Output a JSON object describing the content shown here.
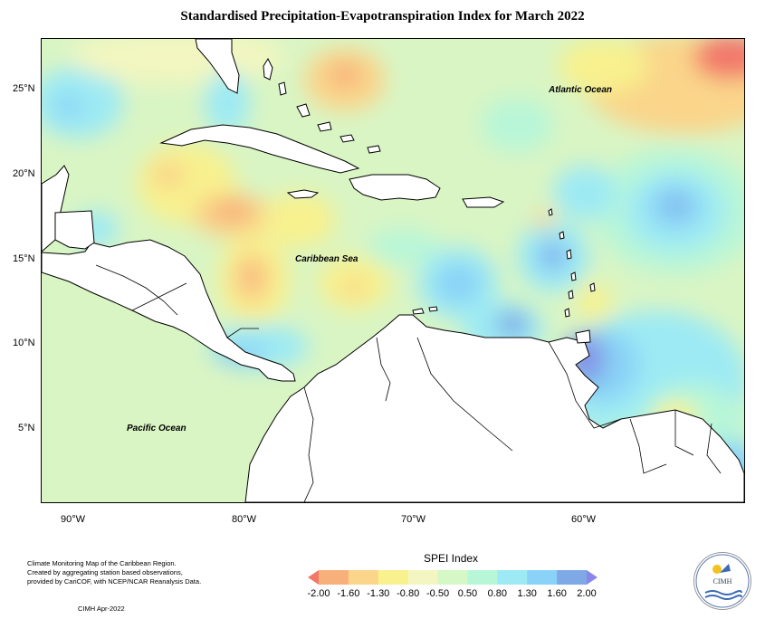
{
  "map": {
    "title": "Standardised Precipitation-Evapotranspiration Index for March 2022",
    "lat_labels": [
      "25°N",
      "20°N",
      "15°N",
      "10°N",
      "5°N"
    ],
    "lon_labels": [
      "90°W",
      "80°W",
      "70°W",
      "60°W"
    ],
    "places": {
      "atlantic": "Atlantic Ocean",
      "caribbean": "Caribbean Sea",
      "pacific": "Pacific Ocean"
    }
  },
  "legend": {
    "title": "SPEI Index",
    "ticks": [
      "-2.00",
      "-1.60",
      "-1.30",
      "-0.80",
      "-0.50",
      "0.50",
      "0.80",
      "1.30",
      "1.60",
      "2.00"
    ],
    "colors": [
      "#f2786a",
      "#f8b07a",
      "#fad58a",
      "#f8f18e",
      "#f3f6c0",
      "#d6f8c6",
      "#b8f6d8",
      "#9deaf4",
      "#8ad2f7",
      "#7fa9e6",
      "#8b86ea"
    ]
  },
  "footer": {
    "line1": "Climate Monitoring Map of the Caribbean Region.",
    "line2": "Created by aggregating station based observations,",
    "line3": "provided by CariCOF, with NCEP/NCAR Reanalysis Data.",
    "date": "CIMH Apr-2022"
  },
  "logo": {
    "text": "CIMH"
  }
}
